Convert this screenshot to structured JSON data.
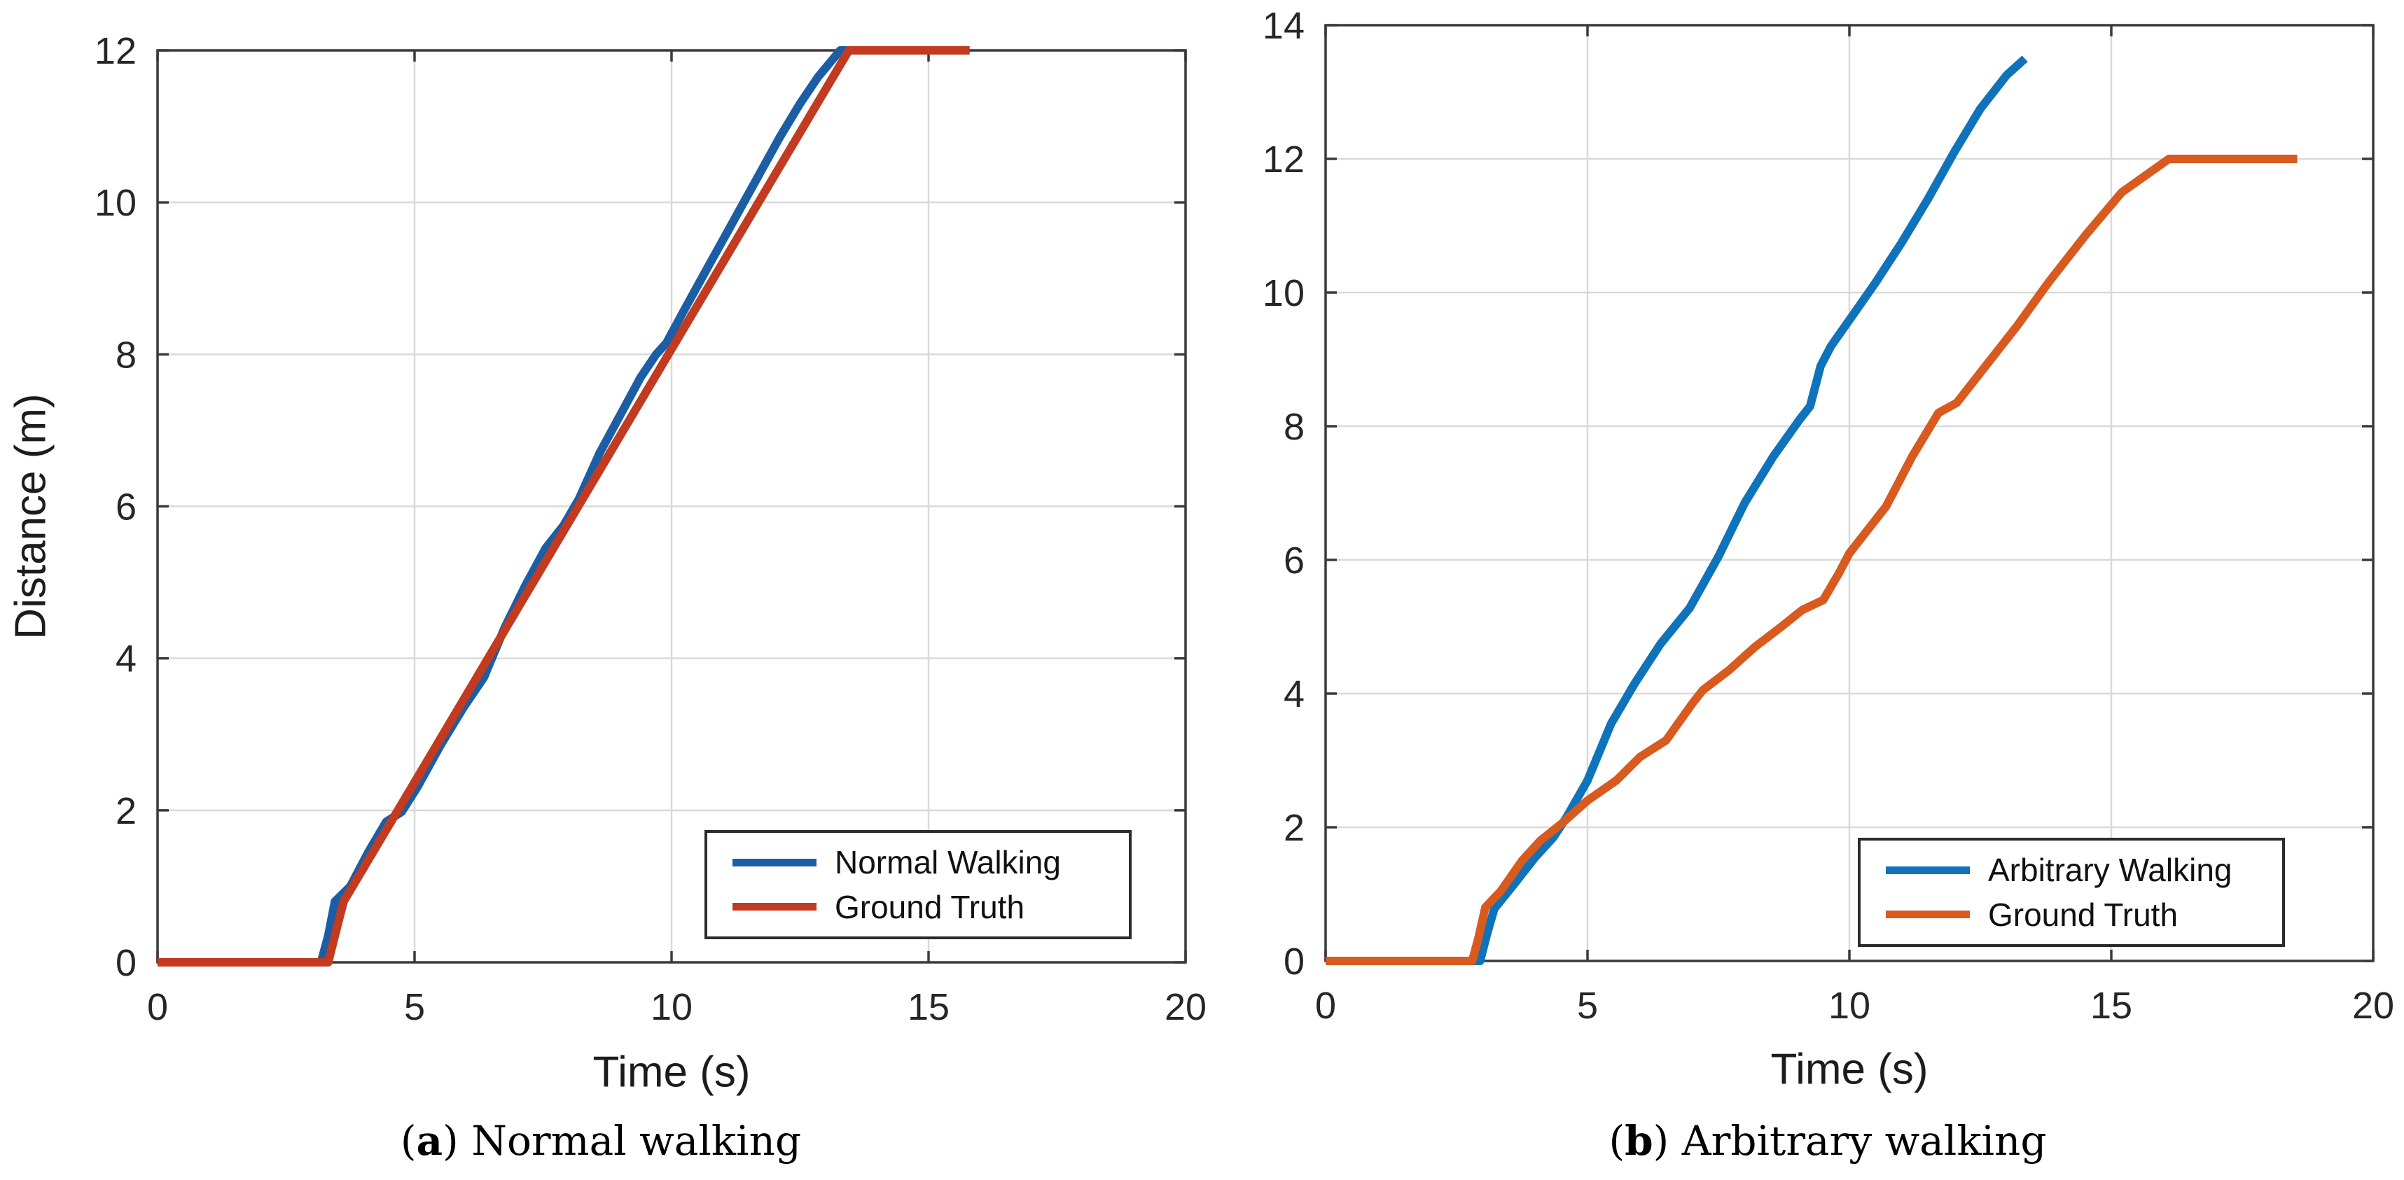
{
  "figure": {
    "background": "#ffffff",
    "caption_a": "(a) Normal walking",
    "caption_b": "(b) Arbitrary walking"
  },
  "chart_data": [
    {
      "id": "a",
      "type": "line",
      "title": "(a) Normal walking",
      "xlabel": "Time (s)",
      "ylabel": "Distance (m)",
      "xlim": [
        0,
        20
      ],
      "ylim": [
        0,
        12
      ],
      "xticks": [
        0,
        5,
        10,
        15,
        20
      ],
      "yticks": [
        0,
        2,
        4,
        6,
        8,
        10,
        12
      ],
      "grid": true,
      "legend_position": "bottom-right",
      "caption": {
        "open": "(",
        "letter": "a",
        "rest": ") Normal walking"
      },
      "legend": {
        "items": [
          {
            "label": "Normal Walking",
            "color": "#1b5ea6"
          },
          {
            "label": "Ground Truth",
            "color": "#c23a20"
          }
        ]
      },
      "series": [
        {
          "name": "normal-walking-line",
          "color": "#1b5ea6",
          "points": [
            [
              0,
              0
            ],
            [
              3.18,
              0
            ],
            [
              3.32,
              0.35
            ],
            [
              3.45,
              0.8
            ],
            [
              3.75,
              1.0
            ],
            [
              4.1,
              1.45
            ],
            [
              4.45,
              1.85
            ],
            [
              4.75,
              1.98
            ],
            [
              5.05,
              2.3
            ],
            [
              5.5,
              2.85
            ],
            [
              5.95,
              3.35
            ],
            [
              6.35,
              3.75
            ],
            [
              6.75,
              4.4
            ],
            [
              7.15,
              4.95
            ],
            [
              7.55,
              5.45
            ],
            [
              7.9,
              5.75
            ],
            [
              8.2,
              6.1
            ],
            [
              8.6,
              6.7
            ],
            [
              9.0,
              7.2
            ],
            [
              9.4,
              7.7
            ],
            [
              9.7,
              8.0
            ],
            [
              9.9,
              8.15
            ],
            [
              10.3,
              8.65
            ],
            [
              10.75,
              9.2
            ],
            [
              11.2,
              9.75
            ],
            [
              11.65,
              10.3
            ],
            [
              12.1,
              10.85
            ],
            [
              12.5,
              11.3
            ],
            [
              12.85,
              11.65
            ],
            [
              13.28,
              12
            ],
            [
              15.72,
              12
            ]
          ]
        },
        {
          "name": "ground-truth-line",
          "color": "#c23a20",
          "points": [
            [
              0,
              0
            ],
            [
              3.32,
              0
            ],
            [
              3.45,
              0.35
            ],
            [
              3.62,
              0.8
            ],
            [
              5.0,
              2.37
            ],
            [
              7.0,
              4.65
            ],
            [
              9.0,
              6.93
            ],
            [
              11.0,
              9.21
            ],
            [
              13.0,
              11.49
            ],
            [
              13.45,
              12
            ],
            [
              15.8,
              12
            ]
          ]
        }
      ]
    },
    {
      "id": "b",
      "type": "line",
      "title": "(b) Arbitrary walking",
      "xlabel": "Time (s)",
      "ylabel": "",
      "xlim": [
        0,
        20
      ],
      "ylim": [
        0,
        14
      ],
      "xticks": [
        0,
        5,
        10,
        15,
        20
      ],
      "yticks": [
        0,
        2,
        4,
        6,
        8,
        10,
        12,
        14
      ],
      "grid": true,
      "legend_position": "bottom-right",
      "caption": {
        "open": "(",
        "letter": "b",
        "rest": ") Arbitrary walking"
      },
      "legend": {
        "items": [
          {
            "label": "Arbitrary Walking",
            "color": "#0e73ba"
          },
          {
            "label": "Ground Truth",
            "color": "#d85a1e"
          }
        ]
      },
      "series": [
        {
          "name": "arbitrary-walking-line",
          "color": "#0e73ba",
          "points": [
            [
              0,
              0
            ],
            [
              2.95,
              0
            ],
            [
              3.08,
              0.4
            ],
            [
              3.22,
              0.78
            ],
            [
              3.6,
              1.15
            ],
            [
              4.0,
              1.55
            ],
            [
              4.35,
              1.85
            ],
            [
              4.6,
              2.15
            ],
            [
              5.0,
              2.7
            ],
            [
              5.45,
              3.55
            ],
            [
              5.9,
              4.15
            ],
            [
              6.4,
              4.75
            ],
            [
              6.95,
              5.28
            ],
            [
              7.5,
              6.05
            ],
            [
              8.0,
              6.85
            ],
            [
              8.55,
              7.55
            ],
            [
              9.05,
              8.1
            ],
            [
              9.25,
              8.3
            ],
            [
              9.45,
              8.9
            ],
            [
              9.65,
              9.2
            ],
            [
              10.1,
              9.7
            ],
            [
              10.5,
              10.15
            ],
            [
              11.0,
              10.75
            ],
            [
              11.5,
              11.4
            ],
            [
              12.0,
              12.1
            ],
            [
              12.5,
              12.75
            ],
            [
              13.0,
              13.25
            ],
            [
              13.35,
              13.5
            ]
          ]
        },
        {
          "name": "ground-truth-line",
          "color": "#d85a1e",
          "points": [
            [
              0,
              0
            ],
            [
              2.8,
              0
            ],
            [
              2.92,
              0.35
            ],
            [
              3.05,
              0.8
            ],
            [
              3.35,
              1.05
            ],
            [
              3.75,
              1.5
            ],
            [
              4.1,
              1.8
            ],
            [
              4.5,
              2.05
            ],
            [
              5.0,
              2.4
            ],
            [
              5.55,
              2.7
            ],
            [
              6.0,
              3.05
            ],
            [
              6.5,
              3.3
            ],
            [
              7.0,
              3.85
            ],
            [
              7.2,
              4.05
            ],
            [
              7.7,
              4.35
            ],
            [
              8.2,
              4.7
            ],
            [
              8.7,
              5.0
            ],
            [
              9.1,
              5.25
            ],
            [
              9.5,
              5.4
            ],
            [
              9.8,
              5.8
            ],
            [
              10.0,
              6.1
            ],
            [
              10.4,
              6.5
            ],
            [
              10.7,
              6.8
            ],
            [
              11.2,
              7.55
            ],
            [
              11.7,
              8.2
            ],
            [
              12.05,
              8.35
            ],
            [
              12.6,
              8.9
            ],
            [
              13.2,
              9.5
            ],
            [
              13.8,
              10.15
            ],
            [
              14.5,
              10.85
            ],
            [
              15.2,
              11.5
            ],
            [
              16.1,
              12
            ],
            [
              18.55,
              12
            ]
          ]
        }
      ]
    }
  ]
}
